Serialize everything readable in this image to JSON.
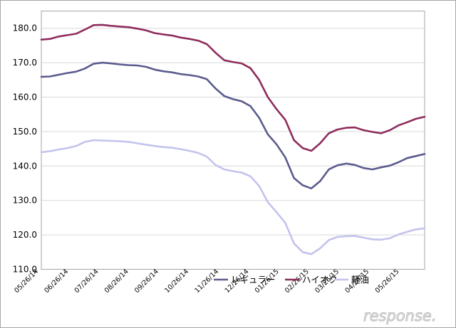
{
  "watermark": {
    "text": "response."
  },
  "chart_data": {
    "type": "line",
    "title": "",
    "xlabel": "",
    "ylabel": "",
    "ylim": [
      110,
      185
    ],
    "y_ticks": [
      "110.0",
      "120.0",
      "130.0",
      "140.0",
      "150.0",
      "160.0",
      "170.0",
      "180.0"
    ],
    "grid": true,
    "legend": "bottom-right",
    "x_labels": [
      "05/26/14",
      "06/26/14",
      "07/26/14",
      "08/26/14",
      "09/26/14",
      "10/26/14",
      "11/26/14",
      "12/26/14",
      "01/26/15",
      "02/26/15",
      "03/26/15",
      "04/26/15",
      "05/26/15"
    ],
    "series": [
      {
        "name": "レギュラー",
        "color": "#5b5b8e",
        "values": [
          165.9,
          166.0,
          166.5,
          167.0,
          167.4,
          168.3,
          169.7,
          170.0,
          169.8,
          169.5,
          169.3,
          169.2,
          168.8,
          168.0,
          167.5,
          167.2,
          166.7,
          166.4,
          166.0,
          165.2,
          162.5,
          160.3,
          159.4,
          158.8,
          157.4,
          154.0,
          149.2,
          146.3,
          142.5,
          136.5,
          134.4,
          133.5,
          135.6,
          139.0,
          140.2,
          140.7,
          140.3,
          139.4,
          139.0,
          139.6,
          140.1,
          141.1,
          142.3,
          142.9,
          143.5
        ]
      },
      {
        "name": "ハイオク",
        "color": "#8e2d5c",
        "values": [
          176.7,
          176.9,
          177.6,
          178.0,
          178.4,
          179.6,
          180.9,
          181.0,
          180.7,
          180.5,
          180.3,
          179.9,
          179.4,
          178.6,
          178.2,
          177.9,
          177.3,
          176.9,
          176.4,
          175.4,
          172.9,
          170.7,
          170.2,
          169.8,
          168.4,
          165.0,
          160.0,
          156.5,
          153.4,
          147.5,
          145.2,
          144.4,
          146.6,
          149.5,
          150.6,
          151.1,
          151.2,
          150.4,
          149.9,
          149.5,
          150.4,
          151.8,
          152.7,
          153.7,
          154.3
        ]
      },
      {
        "name": "軽油",
        "color": "#c3c3ee",
        "values": [
          144.0,
          144.3,
          144.8,
          145.2,
          145.8,
          147.0,
          147.5,
          147.4,
          147.3,
          147.2,
          147.0,
          146.6,
          146.2,
          145.8,
          145.5,
          145.3,
          144.9,
          144.4,
          143.8,
          142.7,
          140.3,
          139.0,
          138.5,
          138.1,
          137.0,
          134.2,
          129.5,
          126.6,
          123.5,
          117.5,
          115.0,
          114.4,
          116.1,
          118.5,
          119.4,
          119.6,
          119.7,
          119.2,
          118.7,
          118.6,
          119.0,
          120.1,
          120.9,
          121.6,
          121.9
        ]
      }
    ]
  }
}
